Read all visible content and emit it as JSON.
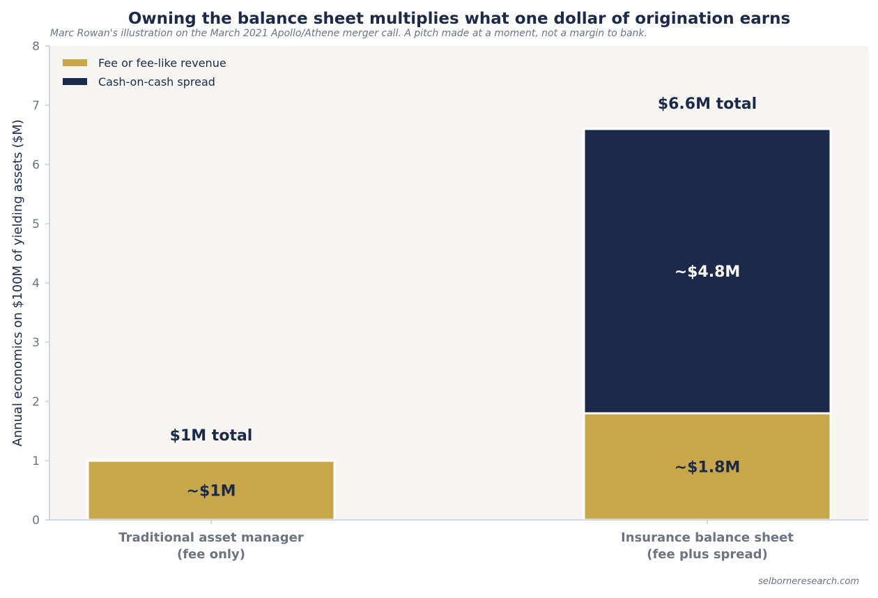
{
  "colors": {
    "fee": "#c8a74a",
    "spread": "#1c2a4a",
    "plot_bg": "#f7f5f1",
    "axis": "#c3ccd8",
    "tick_text": "#6b7480",
    "dark_text": "#1c2a4a",
    "light_text": "#ffffff"
  },
  "credit": "selborneresearch.com",
  "chart_data": {
    "type": "bar",
    "stacked": true,
    "title": "Owning the balance sheet multiplies what one dollar of origination earns",
    "subtitle": "Marc Rowan's illustration on the March 2021 Apollo/Athene merger call. A pitch made at a moment, not a margin to bank.",
    "xlabel": "",
    "ylabel": "Annual economics on $100M of yielding assets ($M)",
    "ylim": [
      0,
      8
    ],
    "yticks": [
      0,
      1,
      2,
      3,
      4,
      5,
      6,
      7,
      8
    ],
    "grid": false,
    "legend_position": "top-left",
    "categories": [
      [
        "Traditional asset manager",
        "(fee only)"
      ],
      [
        "Insurance balance sheet",
        "(fee plus spread)"
      ]
    ],
    "series": [
      {
        "name": "Fee or fee-like revenue",
        "color": "#c8a74a",
        "values": [
          1.0,
          1.8
        ],
        "labels": [
          "~$1M",
          "~$1.8M"
        ],
        "label_color": "#1c2a4a"
      },
      {
        "name": "Cash-on-cash spread",
        "color": "#1c2a4a",
        "values": [
          0,
          4.8
        ],
        "labels": [
          "",
          "~$4.8M"
        ],
        "label_color": "#ffffff"
      }
    ],
    "totals": [
      1.0,
      6.6
    ],
    "total_labels": [
      "$1M total",
      "$6.6M total"
    ]
  }
}
